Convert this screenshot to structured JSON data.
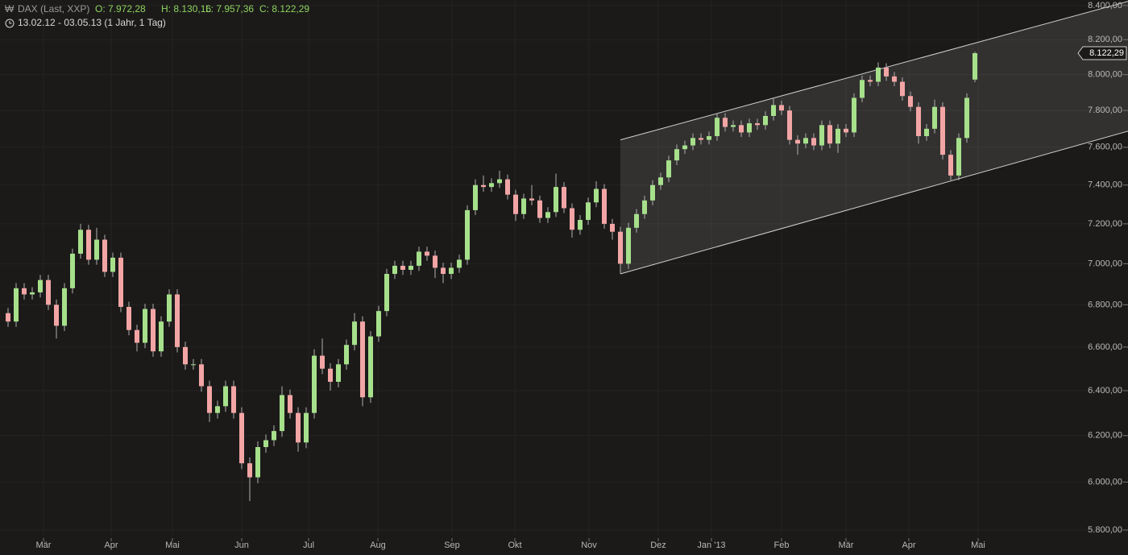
{
  "header": {
    "instrument": "DAX (Last, XXP)",
    "quote": [
      "O: 7.972,28",
      "H: 8.130,16",
      "L: 7.957,36",
      "C: 8.122,29"
    ],
    "range": "13.02.12 - 03.05.13 (1 Jahr, 1 Tag)"
  },
  "chart_data": {
    "type": "candlestick",
    "log_scale": true,
    "grid": true,
    "up_color": "#a6e08b",
    "down_color": "#f3a5a5",
    "wick_color": "#b0b0b0",
    "xlim": [
      -1,
      139
    ],
    "ylim": [
      5777,
      8433
    ],
    "xticks": [
      {
        "value": 4.4,
        "label": "Mär"
      },
      {
        "value": 12.8,
        "label": "Apr"
      },
      {
        "value": 20.4,
        "label": "Mai"
      },
      {
        "value": 29,
        "label": "Jun"
      },
      {
        "value": 37.3,
        "label": "Jul"
      },
      {
        "value": 45.9,
        "label": "Aug"
      },
      {
        "value": 55.1,
        "label": "Sep"
      },
      {
        "value": 62.9,
        "label": "Okt"
      },
      {
        "value": 72.1,
        "label": "Nov"
      },
      {
        "value": 80.7,
        "label": "Dez"
      },
      {
        "value": 87.3,
        "label": "Jan '13"
      },
      {
        "value": 96,
        "label": "Feb"
      },
      {
        "value": 104,
        "label": "Mär"
      },
      {
        "value": 111.8,
        "label": "Apr"
      },
      {
        "value": 120.4,
        "label": "Mai"
      }
    ],
    "yticks": [
      {
        "value": 5800,
        "label": "5.800,00"
      },
      {
        "value": 6000,
        "label": "6.000,00"
      },
      {
        "value": 6200,
        "label": "6.200,00"
      },
      {
        "value": 6400,
        "label": "6.400,00"
      },
      {
        "value": 6600,
        "label": "6.600,00"
      },
      {
        "value": 6800,
        "label": "6.800,00"
      },
      {
        "value": 7000,
        "label": "7.000,00"
      },
      {
        "value": 7200,
        "label": "7.200,00"
      },
      {
        "value": 7400,
        "label": "7.400,00"
      },
      {
        "value": 7600,
        "label": "7.600,00"
      },
      {
        "value": 7800,
        "label": "7.800,00"
      },
      {
        "value": 8000,
        "label": "8.000,00"
      },
      {
        "value": 8200,
        "label": "8.200,00"
      },
      {
        "value": 8400,
        "label": "8.400,00"
      }
    ],
    "last": {
      "value": 8122.29,
      "label": "8.122,29"
    },
    "channel": {
      "upper": {
        "x": [
          76,
          139
        ],
        "y": [
          7640,
          8425
        ]
      },
      "lower": {
        "x": [
          76,
          139
        ],
        "y": [
          6950,
          7687
        ]
      }
    },
    "open": [
      6760,
      6720,
      6880,
      6850,
      6860,
      6920,
      6800,
      6700,
      6880,
      7050,
      7170,
      7020,
      7120,
      6960,
      7030,
      6790,
      6680,
      6620,
      6780,
      6580,
      6720,
      6850,
      6600,
      6520,
      6520,
      6420,
      6300,
      6330,
      6420,
      6300,
      6080,
      6020,
      6150,
      6180,
      6220,
      6380,
      6300,
      6170,
      6300,
      6560,
      6500,
      6440,
      6520,
      6610,
      6720,
      6370,
      6650,
      6770,
      6950,
      6990,
      6970,
      6990,
      7060,
      7040,
      6980,
      6950,
      6980,
      7020,
      7270,
      7400,
      7390,
      7410,
      7430,
      7350,
      7250,
      7330,
      7320,
      7230,
      7260,
      7390,
      7280,
      7170,
      7220,
      7310,
      7380,
      7200,
      7160,
      7000,
      7180,
      7250,
      7320,
      7400,
      7440,
      7530,
      7590,
      7610,
      7650,
      7640,
      7660,
      7760,
      7710,
      7720,
      7680,
      7730,
      7720,
      7770,
      7830,
      7800,
      7640,
      7620,
      7650,
      7610,
      7720,
      7620,
      7700,
      7680,
      7870,
      7970,
      7960,
      8040,
      7990,
      7960,
      7880,
      7820,
      7660,
      7700,
      7820,
      7560,
      7450,
      7650,
      7972.28
    ],
    "high": [
      6785,
      6905,
      6905,
      6885,
      6945,
      6945,
      6825,
      6905,
      7075,
      7200,
      7195,
      7180,
      7145,
      7055,
      7055,
      6815,
      6705,
      6805,
      6805,
      6745,
      6875,
      6875,
      6625,
      6545,
      6545,
      6445,
      6355,
      6445,
      6445,
      6325,
      6105,
      6175,
      6205,
      6245,
      6420,
      6405,
      6325,
      6325,
      6590,
      6640,
      6525,
      6545,
      6635,
      6760,
      6745,
      6675,
      6795,
      6975,
      7015,
      7015,
      7015,
      7085,
      7085,
      7065,
      7005,
      7005,
      7045,
      7295,
      7430,
      7450,
      7435,
      7475,
      7455,
      7375,
      7355,
      7400,
      7345,
      7285,
      7460,
      7415,
      7305,
      7245,
      7335,
      7420,
      7405,
      7225,
      7185,
      7205,
      7275,
      7345,
      7425,
      7465,
      7555,
      7615,
      7635,
      7675,
      7675,
      7685,
      7785,
      7785,
      7745,
      7745,
      7755,
      7755,
      7795,
      7870,
      7855,
      7825,
      7665,
      7675,
      7675,
      7745,
      7745,
      7725,
      7725,
      7895,
      7995,
      7995,
      8070,
      8065,
      8015,
      7985,
      7905,
      7845,
      7725,
      7860,
      7845,
      7585,
      7675,
      7895,
      8130.16
    ],
    "low": [
      6695,
      6695,
      6825,
      6825,
      6835,
      6775,
      6640,
      6675,
      6855,
      7025,
      6995,
      6995,
      6935,
      6935,
      6765,
      6655,
      6580,
      6595,
      6555,
      6555,
      6695,
      6575,
      6495,
      6495,
      6395,
      6260,
      6275,
      6305,
      6275,
      6055,
      5920,
      5995,
      6125,
      6155,
      6195,
      6275,
      6130,
      6145,
      6275,
      6475,
      6400,
      6415,
      6495,
      6585,
      6330,
      6345,
      6625,
      6745,
      6925,
      6945,
      6945,
      6965,
      7015,
      6930,
      6905,
      6925,
      6955,
      6995,
      7245,
      7365,
      7365,
      7385,
      7325,
      7215,
      7225,
      7295,
      7205,
      7205,
      7235,
      7255,
      7130,
      7145,
      7195,
      7285,
      7175,
      7120,
      6950,
      6975,
      7155,
      7225,
      7295,
      7375,
      7415,
      7505,
      7565,
      7585,
      7615,
      7615,
      7635,
      7685,
      7685,
      7655,
      7655,
      7695,
      7695,
      7745,
      7775,
      7615,
      7560,
      7595,
      7585,
      7585,
      7595,
      7570,
      7655,
      7655,
      7845,
      7935,
      7935,
      7965,
      7935,
      7855,
      7795,
      7620,
      7635,
      7675,
      7535,
      7425,
      7425,
      7625,
      7957.36
    ],
    "close": [
      6720,
      6880,
      6850,
      6860,
      6920,
      6800,
      6700,
      6880,
      7050,
      7170,
      7020,
      7120,
      6960,
      7030,
      6790,
      6680,
      6620,
      6780,
      6580,
      6720,
      6850,
      6600,
      6520,
      6520,
      6420,
      6300,
      6330,
      6420,
      6300,
      6080,
      6020,
      6150,
      6180,
      6220,
      6380,
      6300,
      6170,
      6300,
      6560,
      6500,
      6440,
      6520,
      6610,
      6720,
      6370,
      6650,
      6770,
      6950,
      6990,
      6970,
      6990,
      7060,
      7040,
      6980,
      6950,
      6980,
      7020,
      7270,
      7400,
      7390,
      7410,
      7430,
      7350,
      7250,
      7330,
      7320,
      7230,
      7260,
      7390,
      7280,
      7170,
      7220,
      7310,
      7380,
      7200,
      7160,
      7000,
      7180,
      7250,
      7320,
      7400,
      7440,
      7530,
      7590,
      7610,
      7650,
      7640,
      7660,
      7760,
      7710,
      7720,
      7680,
      7730,
      7720,
      7770,
      7830,
      7800,
      7640,
      7620,
      7650,
      7610,
      7720,
      7620,
      7700,
      7680,
      7870,
      7970,
      7960,
      8040,
      7990,
      7960,
      7880,
      7820,
      7660,
      7700,
      7820,
      7560,
      7450,
      7650,
      7870,
      8122.29
    ]
  }
}
